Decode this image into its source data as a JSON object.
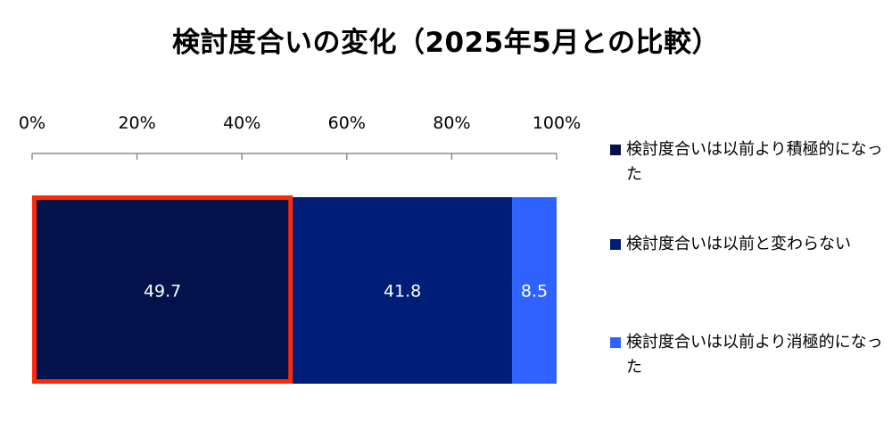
{
  "chart_data": {
    "type": "bar",
    "orientation": "horizontal",
    "stacked": true,
    "title": "検討度合いの変化（2025年5月との比較）",
    "xlim": [
      0,
      100
    ],
    "x_ticks": [
      "0%",
      "20%",
      "40%",
      "60%",
      "80%",
      "100%"
    ],
    "categories": [
      ""
    ],
    "series": [
      {
        "name": "検討度合いは以前より積極的になった",
        "values": [
          49.7
        ],
        "color": "#03124a",
        "label": "49.7",
        "highlighted": true
      },
      {
        "name": "検討度合いは以前と変わらない",
        "values": [
          41.8
        ],
        "color": "#001e78",
        "label": "41.8"
      },
      {
        "name": "検討度合いは以前より消極的になった",
        "values": [
          8.5
        ],
        "color": "#2f63ff",
        "label": "8.5"
      }
    ],
    "highlight_color": "#ff2a0a",
    "legend": "right"
  }
}
